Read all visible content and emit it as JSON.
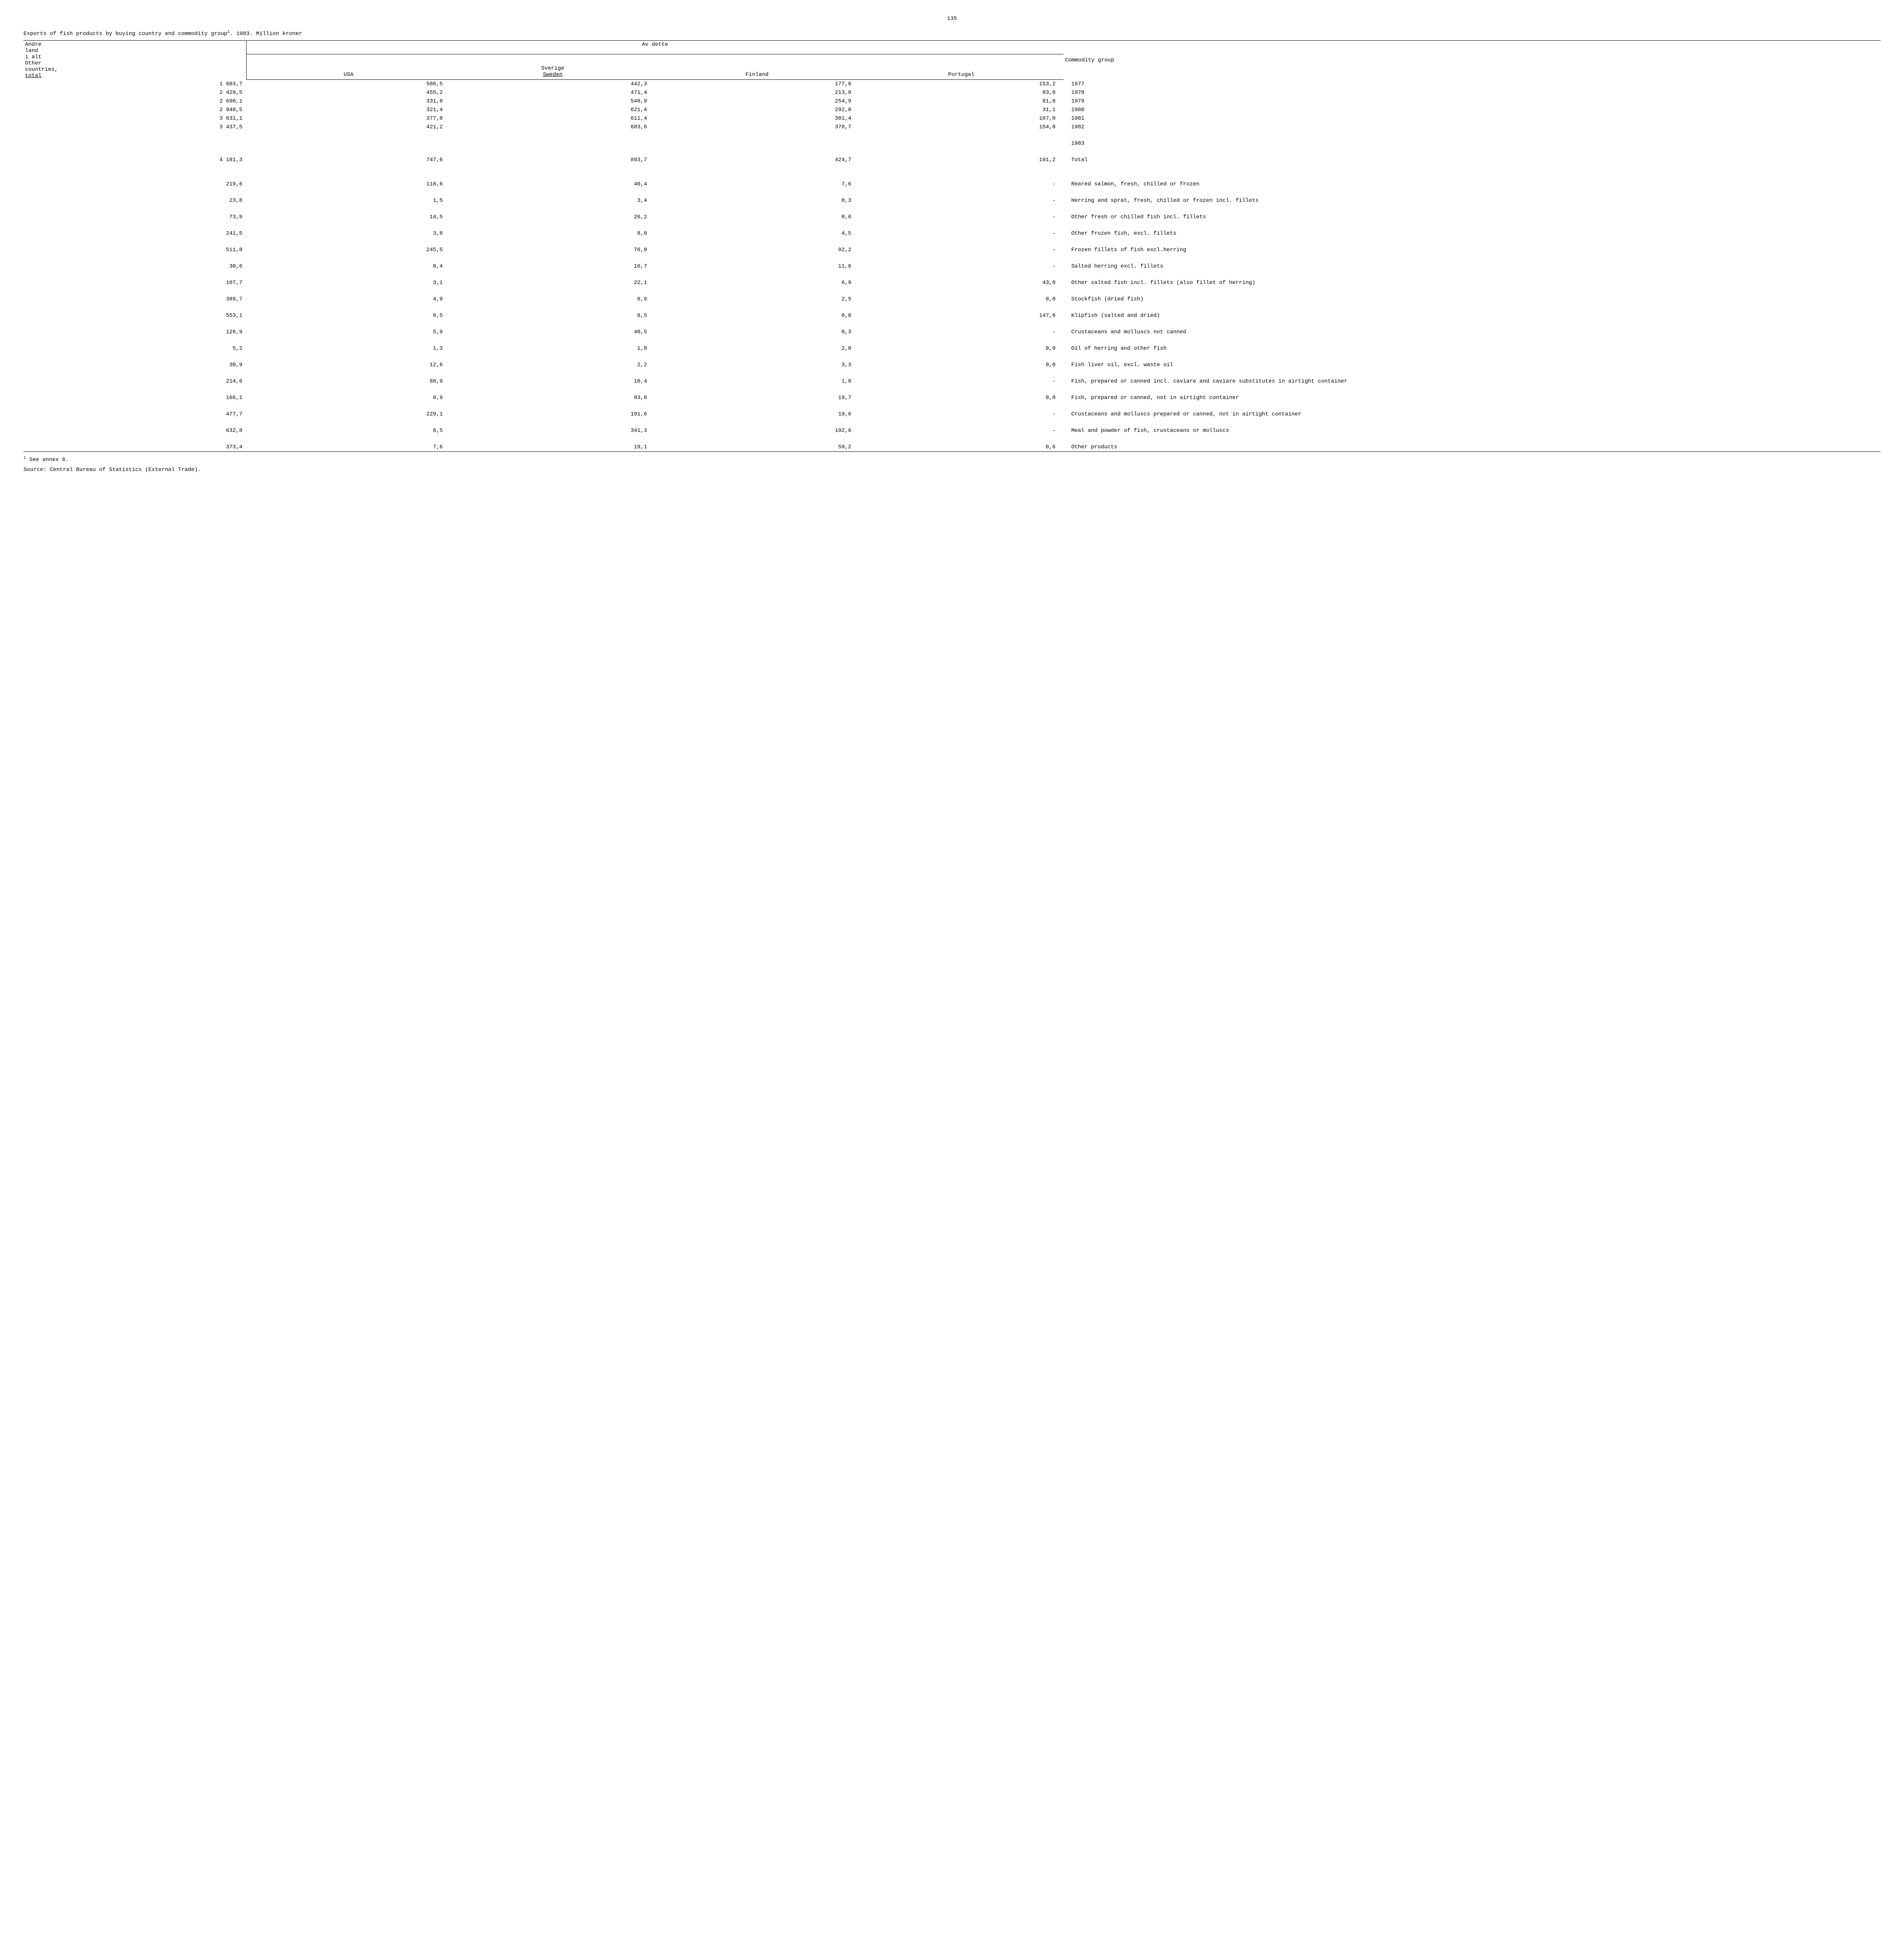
{
  "page_number": "135",
  "title_left": "Exports of fish products by buying country and commodity group",
  "title_sup": "1",
  "title_right": ".  1983.  Million kroner",
  "headers": {
    "andre_line1": "Andre",
    "andre_line2": "land",
    "andre_line3": "i alt",
    "andre_line4": "Other",
    "andre_line5": "countries,",
    "andre_line6": "total",
    "av_dette": "Av dette",
    "usa": "USA",
    "sverige_line1": "Sverige",
    "sverige_line2": "Sweden",
    "finland": "Finland",
    "portugal": "Portugal",
    "commodity": "Commodity group"
  },
  "years": [
    {
      "andre": "1 603,7",
      "usa": "506,5",
      "sweden": "442,3",
      "finland": "177,6",
      "portugal": "153,2",
      "label": "1977"
    },
    {
      "andre": "2 429,5",
      "usa": "455,2",
      "sweden": "471,4",
      "finland": "213,8",
      "portugal": "83,0",
      "label": "1978"
    },
    {
      "andre": "2 690,1",
      "usa": "331,8",
      "sweden": "548,9",
      "finland": "254,9",
      "portugal": "81,8",
      "label": "1979"
    },
    {
      "andre": "2 948,5",
      "usa": "321,4",
      "sweden": "621,4",
      "finland": "292,0",
      "portugal": "31,1",
      "label": "1980"
    },
    {
      "andre": "3 631,1",
      "usa": "377,8",
      "sweden": "611,4",
      "finland": "301,4",
      "portugal": "167,0",
      "label": "1981"
    },
    {
      "andre": "3 437,5",
      "usa": "421,2",
      "sweden": "683,6",
      "finland": "378,7",
      "portugal": "154,8",
      "label": "1982"
    }
  ],
  "year_1983": "1983",
  "total_row": {
    "andre": "4 181,3",
    "usa": "747,6",
    "sweden": "893,7",
    "finland": "424,7",
    "portugal": "191,2",
    "label": "Total"
  },
  "rows": [
    {
      "andre": "219,6",
      "usa": "118,6",
      "sweden": "40,4",
      "finland": "7,6",
      "portugal": "-",
      "label": "Reared salmon, fresh, chilled or frozen"
    },
    {
      "andre": "23,8",
      "usa": "1,5",
      "sweden": "3,4",
      "finland": "0,3",
      "portugal": "-",
      "label": "Herring and sprat, fresh, chilled or frozen incl. fillets"
    },
    {
      "andre": "73,9",
      "usa": "14,5",
      "sweden": "26,2",
      "finland": "0,6",
      "portugal": "-",
      "label": "Other fresh or chilled fish incl. fillets"
    },
    {
      "andre": "241,5",
      "usa": "3,8",
      "sweden": "8,8",
      "finland": "4,5",
      "portugal": "-",
      "label": "Other frozen fish, excl. fillets"
    },
    {
      "andre": "511,8",
      "usa": "245,5",
      "sweden": "76,0",
      "finland": "92,2",
      "portugal": "-",
      "label": "Frozen fillets of fish excl.herring"
    },
    {
      "andre": "30,6",
      "usa": "0,4",
      "sweden": "16,7",
      "finland": "11,6",
      "portugal": "-",
      "label": "Salted herring excl. fillets"
    },
    {
      "andre": "107,7",
      "usa": "3,1",
      "sweden": "22,1",
      "finland": "6,9",
      "portugal": "43,0",
      "label": "Other salted fish incl. fillets (also fillet of herring)"
    },
    {
      "andre": "389,7",
      "usa": "4,9",
      "sweden": "8,9",
      "finland": "2,5",
      "portugal": "0,0",
      "label": "Stockfish (dried fish)"
    },
    {
      "andre": "553,1",
      "usa": "8,5",
      "sweden": "0,5",
      "finland": "0,0",
      "portugal": "147,6",
      "label": "Klipfish (salted and dried)"
    },
    {
      "andre": "128,9",
      "usa": "5,9",
      "sweden": "40,5",
      "finland": "0,3",
      "portugal": "-",
      "label": "Crustaceans and molluscs not canned"
    },
    {
      "andre": "5,2",
      "usa": "1,3",
      "sweden": "1,8",
      "finland": "2,0",
      "portugal": "0,0",
      "label": "Oil of herring and other fish"
    },
    {
      "andre": "30,9",
      "usa": "12,6",
      "sweden": "2,2",
      "finland": "3,3",
      "portugal": "0,0",
      "label": "Fish liver oil, excl. waste oil"
    },
    {
      "andre": "214,6",
      "usa": "88,9",
      "sweden": "10,4",
      "finland": "1,8",
      "portugal": "-",
      "label": "Fish, prepared or canned incl. caviare and caviare substitutes in airtight container"
    },
    {
      "andre": "166,1",
      "usa": "0,9",
      "sweden": "83,8",
      "finland": "19,7",
      "portugal": "0,0",
      "label": "Fish, prepared or canned, not in airtight container"
    },
    {
      "andre": "477,7",
      "usa": "229,1",
      "sweden": "191,6",
      "finland": "19,6",
      "portugal": "-",
      "label": "Crustaceans and molluscs prepared or canned, not in airtight container"
    },
    {
      "andre": "632,8",
      "usa": "0,5",
      "sweden": "341,3",
      "finland": "192,6",
      "portugal": "-",
      "label": "Meal and powder of fish, crustaceans or molluscs"
    },
    {
      "andre": "373,4",
      "usa": "7,6",
      "sweden": "19,1",
      "finland": "59,2",
      "portugal": "0,6",
      "label": "Other products"
    }
  ],
  "footnote_sup": "1",
  "footnote_text": " See annex 6.",
  "source_label": "Source:  ",
  "source_text": "Central Bureau of Statistics (External Trade)."
}
